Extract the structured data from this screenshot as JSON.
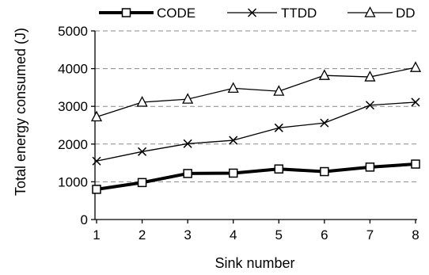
{
  "chart_data": {
    "type": "line",
    "title": "",
    "xlabel": "Sink number",
    "ylabel": "Total energy consumed (J)",
    "categories": [
      1,
      2,
      3,
      4,
      5,
      6,
      7,
      8
    ],
    "ylim": [
      0,
      5000
    ],
    "yticks": [
      0,
      1000,
      2000,
      3000,
      4000,
      5000
    ],
    "grid": "horizontal dashed",
    "legend_position": "top",
    "series": [
      {
        "name": "CODE",
        "marker": "square",
        "line_width": "thick",
        "values": [
          800,
          980,
          1220,
          1230,
          1340,
          1270,
          1390,
          1470
        ]
      },
      {
        "name": "TTDD",
        "marker": "x",
        "line_width": "thin",
        "values": [
          1550,
          1800,
          2010,
          2100,
          2430,
          2560,
          3030,
          3110
        ]
      },
      {
        "name": "DD",
        "marker": "triangle",
        "line_width": "thin",
        "values": [
          2720,
          3110,
          3190,
          3480,
          3400,
          3820,
          3780,
          4030
        ]
      }
    ]
  }
}
